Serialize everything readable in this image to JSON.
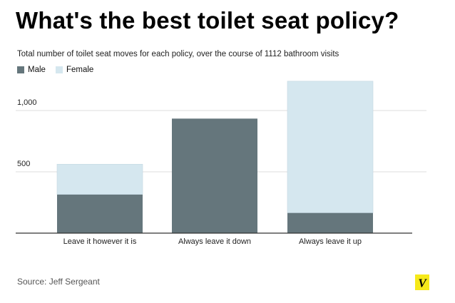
{
  "title": "What's the best toilet seat policy?",
  "subtitle": "Total number of toilet seat moves for each policy, over the course of 1112 bathroom visits",
  "source": "Source: Jeff Sergeant",
  "logo_letter": "V",
  "colors": {
    "male": "#65767c",
    "female": "#d5e7ef",
    "grid": "#dcdcdc",
    "axis": "#333333",
    "logo_bg": "#f6e91a"
  },
  "chart_data": {
    "type": "bar",
    "stacked": true,
    "categories": [
      "Leave it however it is",
      "Always leave it down",
      "Always leave it up"
    ],
    "series": [
      {
        "name": "Male",
        "values": [
          316,
          934,
          166
        ]
      },
      {
        "name": "Female",
        "values": [
          246,
          0,
          1073
        ]
      }
    ],
    "ylim": [
      0,
      1250
    ],
    "yticks": [
      {
        "value": 500,
        "label": "500"
      },
      {
        "value": 1000,
        "label": "1,000"
      }
    ],
    "grid": true,
    "legend_position": "top-left"
  }
}
